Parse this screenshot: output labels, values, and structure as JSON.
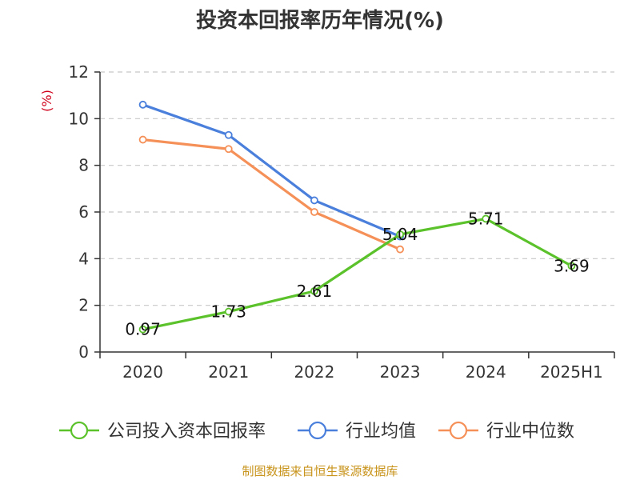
{
  "chart_data": {
    "type": "line",
    "title": "投资本回报率历年情况(%)",
    "ylabel": "(%)",
    "categories": [
      "2020",
      "2021",
      "2022",
      "2023",
      "2024",
      "2025H1"
    ],
    "ylim": [
      0,
      12
    ],
    "yticks": [
      0,
      2,
      4,
      6,
      8,
      10,
      12
    ],
    "grid": true,
    "legend_position": "bottom",
    "series": [
      {
        "name": "公司投入资本回报率",
        "color": "#5bc22b",
        "values": [
          0.97,
          1.73,
          2.61,
          5.04,
          5.71,
          3.69
        ],
        "labels": [
          "0.97",
          "1.73",
          "2.61",
          "5.04",
          "5.71",
          "3.69"
        ]
      },
      {
        "name": "行业均值",
        "color": "#4a7fdc",
        "values": [
          10.6,
          9.3,
          6.5,
          4.95,
          null,
          null
        ]
      },
      {
        "name": "行业中位数",
        "color": "#f59058",
        "values": [
          9.1,
          8.7,
          6.0,
          4.4,
          null,
          null
        ]
      }
    ]
  },
  "source_text": "制图数据来自恒生聚源数据库"
}
